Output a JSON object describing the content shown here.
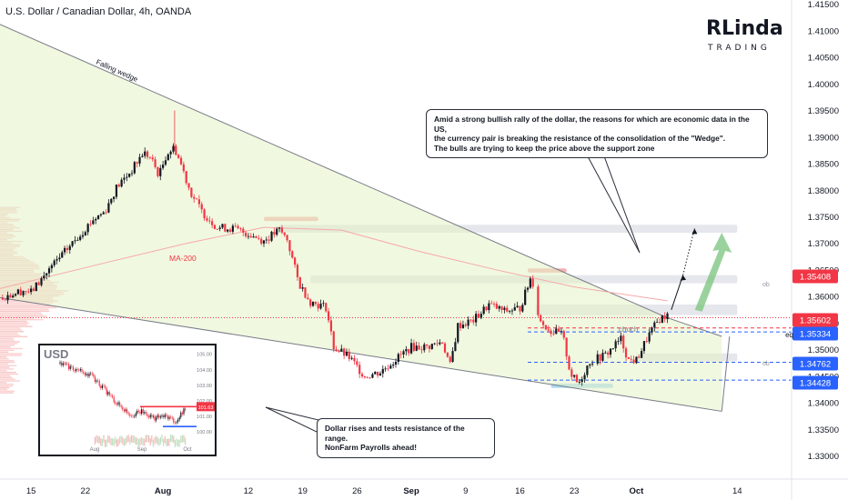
{
  "header": {
    "title": "U.S. Dollar / Canadian Dollar, 4h, OANDA"
  },
  "logo": {
    "text_top": "RLinda",
    "text_bottom": "TRADING"
  },
  "annotations": {
    "wedge_label": "Falling wedge",
    "ma_label": "MA-200",
    "choch_label": "choch",
    "eq_label": "eq",
    "ob_label_upper": "ob",
    "ob_label_lower": "ob",
    "note_top": [
      "Amid a strong bullish rally of the dollar, the reasons for which are economic data in the US,",
      "the currency pair is breaking the resistance of the consolidation of the \"Wedge\".",
      "The bulls are trying to keep the price above the support zone"
    ],
    "note_bottom": [
      "Dollar rises and tests resistance of the range.",
      "NonFarm Payrolls ahead!"
    ]
  },
  "price_badges": {
    "level_1": {
      "value": "1.35408",
      "color": "#f23645"
    },
    "level_2": {
      "value": "1.35602",
      "color": "#f23645"
    },
    "level_3": {
      "value": "1.35334",
      "color": "#2962ff"
    },
    "level_4": {
      "value": "1.34762",
      "color": "#2962ff"
    },
    "level_5": {
      "value": "1.34428",
      "color": "#2962ff"
    }
  },
  "inset": {
    "label": "USD",
    "y_ticks": [
      "105.00",
      "104.00",
      "103.00",
      "102.00",
      "101.00",
      "100.00"
    ],
    "x_ticks": [
      "Aug",
      "Sep",
      "Oct"
    ],
    "price_badge": "101.63",
    "price_value": 101.63,
    "y_range": [
      99.6,
      105.1
    ]
  },
  "colors": {
    "up": "#26a69a",
    "down": "#ef5350",
    "candle_up": "#131722",
    "candle_down": "#f23645",
    "wedge_fill": "#e3f2c7",
    "arrow_green": "#81c784",
    "accent_red": "#f23645",
    "accent_blue": "#2962ff"
  },
  "chart_data": {
    "type": "candlestick",
    "title": "U.S. Dollar / Canadian Dollar, 4h, OANDA",
    "y_ticks": [
      1.33,
      1.335,
      1.34,
      1.345,
      1.35,
      1.355,
      1.36,
      1.365,
      1.37,
      1.375,
      1.38,
      1.385,
      1.39,
      1.395,
      1.4,
      1.405,
      1.41,
      1.415
    ],
    "y_tick_labels": [
      "1.33000",
      "1.33500",
      "1.34000",
      "1.34500",
      "1.35000",
      "1.35500",
      "1.36000",
      "1.36500",
      "1.37000",
      "1.37500",
      "1.38000",
      "1.38500",
      "1.39000",
      "1.39500",
      "1.40000",
      "1.40500",
      "1.41000",
      "1.41500"
    ],
    "ylim": [
      1.3265,
      1.4158
    ],
    "x_ticks": [
      "15",
      "22",
      "Aug",
      "12",
      "19",
      "26",
      "Sep",
      "9",
      "16",
      "23",
      "Oct",
      "14"
    ],
    "x_tick_days": [
      0,
      7,
      17,
      28,
      35,
      42,
      49,
      56,
      63,
      70,
      78,
      91
    ],
    "xlim": [
      -4,
      98
    ],
    "price_path": [
      [
        -4,
        1.3597
      ],
      [
        -1,
        1.3612
      ],
      [
        0,
        1.3608
      ],
      [
        2,
        1.3645
      ],
      [
        4,
        1.3678
      ],
      [
        6,
        1.3712
      ],
      [
        8,
        1.3745
      ],
      [
        9.5,
        1.376
      ],
      [
        11,
        1.3805
      ],
      [
        13,
        1.3838
      ],
      [
        14.5,
        1.3872
      ],
      [
        15.5,
        1.3858
      ],
      [
        16.5,
        1.3828
      ],
      [
        17.5,
        1.387
      ],
      [
        18.5,
        1.388
      ],
      [
        19.5,
        1.3842
      ],
      [
        20.5,
        1.3798
      ],
      [
        22,
        1.376
      ],
      [
        24,
        1.373
      ],
      [
        26,
        1.3728
      ],
      [
        28,
        1.3718
      ],
      [
        30,
        1.3705
      ],
      [
        32,
        1.3725
      ],
      [
        33,
        1.3708
      ],
      [
        34.5,
        1.3625
      ],
      [
        36,
        1.359
      ],
      [
        38,
        1.358
      ],
      [
        39,
        1.3505
      ],
      [
        41,
        1.3485
      ],
      [
        43,
        1.345
      ],
      [
        45,
        1.3458
      ],
      [
        47,
        1.3482
      ],
      [
        49,
        1.3505
      ],
      [
        51,
        1.3505
      ],
      [
        53,
        1.3515
      ],
      [
        54,
        1.347
      ],
      [
        55,
        1.3545
      ],
      [
        57,
        1.3555
      ],
      [
        59,
        1.3585
      ],
      [
        61,
        1.3572
      ],
      [
        63,
        1.3578
      ],
      [
        64.5,
        1.364
      ],
      [
        65.5,
        1.3555
      ],
      [
        67,
        1.3535
      ],
      [
        68.5,
        1.3528
      ],
      [
        69.5,
        1.3455
      ],
      [
        70.5,
        1.3435
      ],
      [
        72,
        1.3478
      ],
      [
        74,
        1.349
      ],
      [
        76,
        1.352
      ],
      [
        77,
        1.348
      ],
      [
        78,
        1.348
      ],
      [
        79.5,
        1.3525
      ],
      [
        81,
        1.3558
      ],
      [
        82,
        1.3565
      ]
    ],
    "ma200": [
      [
        -4,
        1.3615
      ],
      [
        10,
        1.3665
      ],
      [
        20,
        1.37
      ],
      [
        30,
        1.373
      ],
      [
        40,
        1.3725
      ],
      [
        50,
        1.3685
      ],
      [
        60,
        1.365
      ],
      [
        70,
        1.3618
      ],
      [
        82,
        1.3592
      ]
    ],
    "wedge": {
      "upper": [
        [
          -4,
          1.4112
        ],
        [
          82,
          1.356
        ]
      ],
      "lower": [
        [
          -4,
          1.3598
        ],
        [
          89,
          1.3384
        ]
      ],
      "right": [
        [
          82,
          1.356
        ],
        [
          89,
          1.3525
        ]
      ]
    },
    "levels": [
      {
        "name": "resistance-1",
        "value": 1.35408,
        "style": "dashed",
        "color": "#f23645"
      },
      {
        "name": "range-mid",
        "value": 1.35602,
        "style": "dotted",
        "color": "#f23645"
      },
      {
        "name": "eq",
        "value": 1.35334,
        "style": "dashed",
        "color": "#2962ff"
      },
      {
        "name": "support-1",
        "value": 1.34762,
        "style": "dashed",
        "color": "#2962ff"
      },
      {
        "name": "support-2",
        "value": 1.34428,
        "style": "dashed",
        "color": "#2962ff"
      }
    ],
    "zones": [
      {
        "name": "zone-top",
        "x": [
          32,
          91
        ],
        "y": [
          1.372,
          1.3735
        ],
        "color": "#d1d4dc"
      },
      {
        "name": "zone-ob-upper",
        "x": [
          36,
          91
        ],
        "y": [
          1.3625,
          1.364
        ],
        "color": "#d1d4dc"
      },
      {
        "name": "zone-choch",
        "x": [
          65,
          91
        ],
        "y": [
          1.3565,
          1.3585
        ],
        "color": "#d1d4dc"
      },
      {
        "name": "zone-ob-lower",
        "x": [
          78,
          91
        ],
        "y": [
          1.3478,
          1.3493
        ],
        "color": "#d1d4dc"
      },
      {
        "name": "marker-red-1",
        "x": [
          30,
          37
        ],
        "y": [
          1.3742,
          1.375
        ],
        "color": "#f7a9a8"
      },
      {
        "name": "marker-red-2",
        "x": [
          64,
          69
        ],
        "y": [
          1.3645,
          1.3653
        ],
        "color": "#f7a9a8"
      },
      {
        "name": "marker-blue",
        "x": [
          67,
          75
        ],
        "y": [
          1.3428,
          1.3436
        ],
        "color": "#a5d6ef"
      }
    ],
    "projection": {
      "solid": [
        [
          82.5,
          1.3575
        ],
        [
          84,
          1.364
        ]
      ],
      "dotted": [
        [
          84,
          1.364
        ],
        [
          85.5,
          1.3728
        ]
      ],
      "big_arrow": [
        [
          86,
          1.3575
        ],
        [
          89,
          1.372
        ]
      ]
    }
  }
}
